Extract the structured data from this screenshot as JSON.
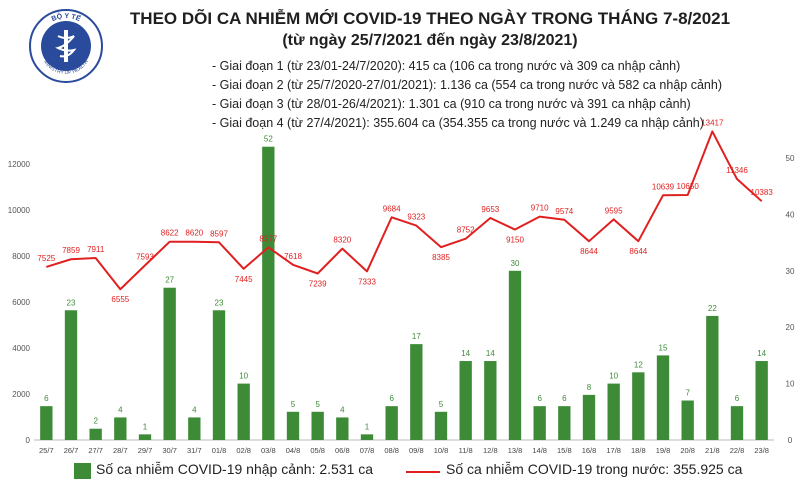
{
  "header": {
    "title": "THEO DÕI CA NHIỄM MỚI COVID-19 THEO NGÀY TRONG THÁNG 7-8/2021",
    "subtitle": "(từ ngày 25/7/2021 đến ngày 23/8/2021)",
    "phases": [
      "- Giai đoạn 1 (từ 23/01-24/7/2020): 415 ca (106 ca trong nước và 309 ca nhập cảnh)",
      "- Giai đoạn 2 (từ 25/7/2020-27/01/2021): 1.136 ca (554 ca trong nước và 582 ca nhập cảnh)",
      "- Giai đoạn 3 (từ 28/01-26/4/2021): 1.301 ca (910 ca trong nước và 391 ca nhập cảnh)",
      "- Giai đoạn 4 (từ 27/4/2021): 355.604 ca (354.355 ca trong nước và 1.249 ca nhập cảnh)"
    ]
  },
  "logo": {
    "text_top": "BỘ Y TẾ",
    "text_bottom": "MINISTRY OF HEALTH"
  },
  "colors": {
    "bar": "#3d8b37",
    "line": "#e02020",
    "bar_label": "#3d8b37",
    "line_label": "#e02020"
  },
  "chart_data": {
    "type": "bar+line",
    "categories": [
      "25/7",
      "26/7",
      "27/7",
      "28/7",
      "29/7",
      "30/7",
      "31/7",
      "01/8",
      "02/8",
      "03/8",
      "04/8",
      "05/8",
      "06/8",
      "07/8",
      "08/8",
      "09/8",
      "10/8",
      "11/8",
      "12/8",
      "13/8",
      "14/8",
      "15/8",
      "16/8",
      "17/8",
      "18/8",
      "19/8",
      "20/8",
      "21/8",
      "22/8",
      "23/8"
    ],
    "left_axis": {
      "min": 0,
      "max": 12000,
      "ticks": [
        0,
        2000,
        4000,
        6000,
        8000,
        10000,
        12000
      ]
    },
    "right_axis": {
      "min": 0,
      "max": 50,
      "ticks": [
        0,
        10,
        20,
        30,
        40,
        50
      ]
    },
    "series": [
      {
        "name": "Số ca nhiễm COVID-19 nhập cảnh: 2.531 ca",
        "type": "bar",
        "axis": "right",
        "values": [
          6,
          23,
          2,
          4,
          1,
          27,
          4,
          23,
          10,
          52,
          5,
          5,
          4,
          1,
          6,
          17,
          5,
          14,
          14,
          30,
          6,
          6,
          8,
          10,
          12,
          15,
          7,
          22,
          6,
          14
        ]
      },
      {
        "name": "Số ca nhiễm COVID-19 trong nước: 355.925 ca",
        "type": "line",
        "axis": "left",
        "values": [
          7525,
          7859,
          7911,
          6555,
          7593,
          8622,
          8620,
          8597,
          7445,
          8377,
          7618,
          7239,
          8320,
          7333,
          9684,
          9323,
          8385,
          8752,
          9653,
          9150,
          9710,
          9574,
          8644,
          9595,
          8644,
          10639,
          10650,
          13417,
          11346,
          10383
        ]
      }
    ]
  }
}
